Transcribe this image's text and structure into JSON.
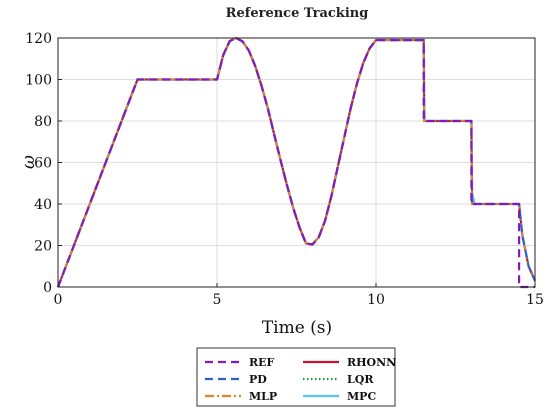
{
  "chart_data": {
    "type": "line",
    "title": "Reference Tracking",
    "xlabel": "Time (s)",
    "ylabel": "ω",
    "xlim": [
      0,
      15
    ],
    "ylim": [
      0,
      120
    ],
    "xticks": [
      0,
      5,
      10,
      15
    ],
    "yticks": [
      0,
      20,
      40,
      60,
      80,
      100,
      120
    ],
    "grid": true,
    "legend_position": "bottom-center",
    "series": [
      {
        "name": "REF",
        "color": "#8a19b3",
        "dash": "dashed",
        "x": [
          0,
          2.5,
          5.0,
          5.2,
          5.4,
          5.6,
          5.8,
          6.0,
          6.2,
          6.4,
          6.6,
          6.8,
          7.0,
          7.2,
          7.4,
          7.6,
          7.8,
          8.0,
          8.2,
          8.4,
          8.6,
          8.8,
          9.0,
          9.2,
          9.4,
          9.6,
          9.8,
          10.0,
          11.5,
          11.5,
          13.0,
          13.0,
          14.5,
          14.5,
          15.0
        ],
        "y": [
          0,
          100,
          100,
          112,
          118.5,
          120,
          118.4,
          114,
          106.5,
          97,
          86,
          73.5,
          61,
          49,
          38,
          28.5,
          21,
          20.5,
          24,
          32,
          44,
          58,
          72,
          86,
          98,
          108,
          115,
          119,
          119,
          80,
          80,
          40,
          40,
          0,
          0
        ]
      },
      {
        "name": "PD",
        "color": "#2f5fd0",
        "dash": "dashed",
        "x": [
          0,
          2.5,
          5.0,
          5.2,
          5.4,
          5.6,
          5.8,
          6.0,
          6.2,
          6.4,
          6.6,
          6.8,
          7.0,
          7.2,
          7.4,
          7.6,
          7.8,
          8.0,
          8.2,
          8.4,
          8.6,
          8.8,
          9.0,
          9.2,
          9.4,
          9.6,
          9.8,
          10.0,
          11.5,
          11.52,
          13.0,
          13.02,
          14.5,
          14.6,
          14.8,
          15.0
        ],
        "y": [
          0,
          100,
          100,
          112,
          118.5,
          120,
          118.4,
          114,
          106.5,
          97,
          86,
          73.5,
          61,
          49,
          38,
          28.5,
          21,
          20.5,
          24,
          32,
          44,
          58,
          72,
          86,
          98,
          108,
          115,
          119,
          119,
          80,
          80,
          40,
          40,
          25,
          10,
          3
        ]
      },
      {
        "name": "MLP",
        "color": "#f07f2a",
        "dash": "dashdot",
        "x": [
          0,
          2.5,
          5.0,
          5.2,
          5.4,
          5.6,
          5.8,
          6.0,
          6.2,
          6.4,
          6.6,
          6.8,
          7.0,
          7.2,
          7.4,
          7.6,
          7.8,
          8.0,
          8.2,
          8.4,
          8.6,
          8.8,
          9.0,
          9.2,
          9.4,
          9.6,
          9.8,
          10.0,
          11.5,
          11.52,
          13.0,
          13.02,
          14.5,
          14.6,
          14.8,
          15.0
        ],
        "y": [
          0,
          100,
          100,
          112,
          118.5,
          120,
          118.4,
          114,
          106.5,
          97,
          86,
          73.5,
          61,
          49,
          38,
          28.5,
          21,
          20.5,
          24,
          32,
          44,
          58,
          72,
          86,
          98,
          108,
          115,
          119,
          119,
          80,
          80,
          40,
          40,
          25,
          10,
          3
        ]
      },
      {
        "name": "RHONN",
        "color": "#c8102e",
        "dash": "solid",
        "x": [
          0,
          2.5,
          5.0,
          5.2,
          5.4,
          5.6,
          5.8,
          6.0,
          6.2,
          6.4,
          6.6,
          6.8,
          7.0,
          7.2,
          7.4,
          7.6,
          7.8,
          8.0,
          8.2,
          8.4,
          8.6,
          8.8,
          9.0,
          9.2,
          9.4,
          9.6,
          9.8,
          10.0,
          11.5,
          11.52,
          13.0,
          13.02,
          14.5,
          14.6,
          14.8,
          15.0
        ],
        "y": [
          0,
          100,
          100,
          112,
          118.5,
          120,
          118.4,
          114,
          106.5,
          97,
          86,
          73.5,
          61,
          49,
          38,
          28.5,
          21,
          20.5,
          24,
          32,
          44,
          58,
          72,
          86,
          98,
          108,
          115,
          119,
          119,
          80,
          80,
          40,
          40,
          25,
          10,
          3
        ]
      },
      {
        "name": "LQR",
        "color": "#1e9e3a",
        "dash": "dotted",
        "x": [
          0,
          2.5,
          5.0,
          5.2,
          5.4,
          5.6,
          5.8,
          6.0,
          6.2,
          6.4,
          6.6,
          6.8,
          7.0,
          7.2,
          7.4,
          7.6,
          7.8,
          8.0,
          8.2,
          8.4,
          8.6,
          8.8,
          9.0,
          9.2,
          9.4,
          9.6,
          9.8,
          10.0,
          11.5,
          11.52,
          13.0,
          13.02,
          14.5,
          14.6,
          14.8,
          15.0
        ],
        "y": [
          0,
          100,
          100,
          112,
          118.5,
          120,
          118.4,
          114,
          106.5,
          97,
          86,
          73.5,
          61,
          49,
          38,
          28.5,
          21,
          20.5,
          24,
          32,
          44,
          58,
          72,
          86,
          98,
          108,
          115,
          119,
          119,
          80,
          80,
          40,
          40,
          25,
          10,
          3
        ]
      },
      {
        "name": "MPC",
        "color": "#56c8ee",
        "dash": "solid",
        "x": [
          0,
          2.5,
          5.0,
          5.2,
          5.4,
          5.6,
          5.8,
          6.0,
          6.2,
          6.4,
          6.6,
          6.8,
          7.0,
          7.2,
          7.4,
          7.6,
          7.8,
          8.0,
          8.2,
          8.4,
          8.6,
          8.8,
          9.0,
          9.2,
          9.4,
          9.6,
          9.8,
          10.0,
          11.5,
          11.52,
          13.0,
          13.02,
          13.1,
          14.5,
          14.6,
          14.8,
          15.0
        ],
        "y": [
          0,
          100,
          100,
          112,
          118.5,
          120,
          118.4,
          114,
          106.5,
          97,
          86,
          73.5,
          61,
          49,
          38,
          28.5,
          21,
          20.5,
          24,
          32,
          44,
          58,
          72,
          86,
          98,
          108,
          115,
          119,
          119,
          80,
          80,
          45,
          40,
          40,
          25,
          10,
          3
        ]
      }
    ]
  }
}
